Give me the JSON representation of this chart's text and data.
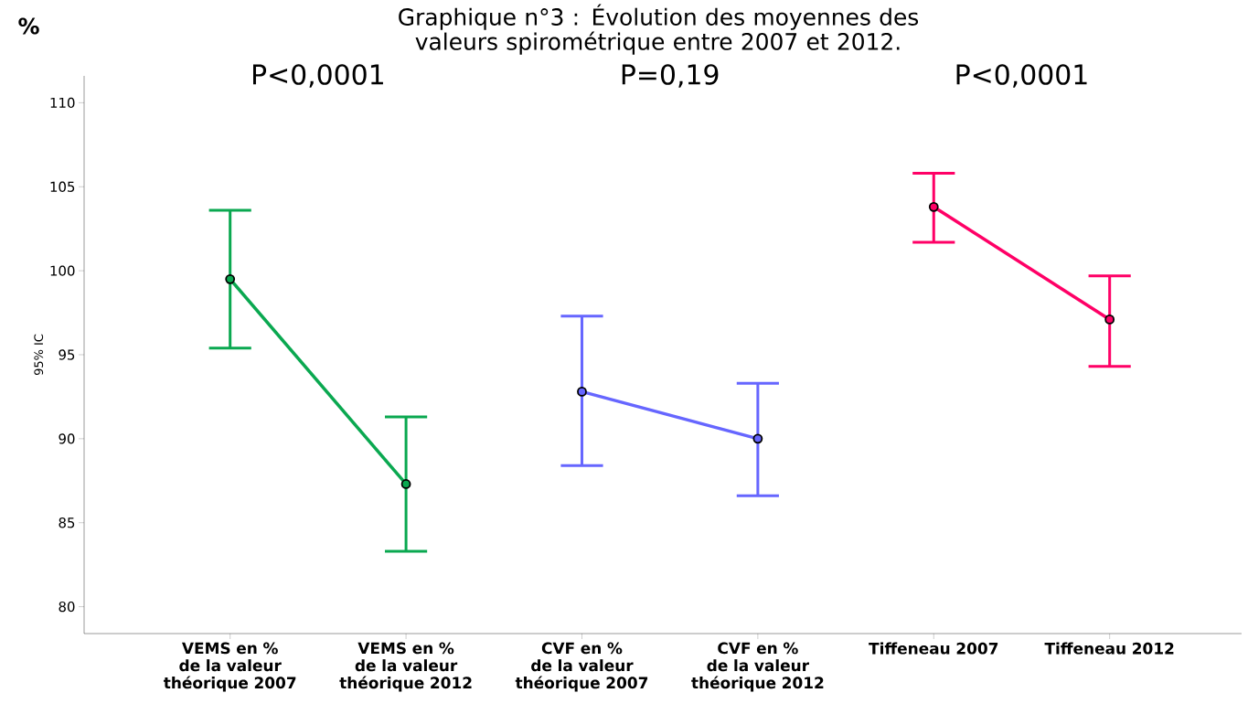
{
  "chart_data": {
    "type": "line",
    "title": "Graphique n°3 : Évolution des moyennes des valeurs spirométrique entre 2007 et 2012.",
    "ylabel": "95% IC",
    "categories": [
      "VEMS en % de la valeur théorique 2007",
      "VEMS en % de la valeur théorique 2012",
      "CVF en % de la valeur théorique 2007",
      "CVF en % de la valeur théorique 2012",
      "Tiffeneau 2007",
      "Tiffeneau 2012"
    ],
    "series": [
      {
        "color": "#0aa850",
        "values": [
          99.5,
          87.3,
          null,
          null,
          null,
          null
        ],
        "errors": [
          [
            95.4,
            103.6
          ],
          [
            83.3,
            91.3
          ],
          null,
          null,
          null,
          null
        ]
      },
      {
        "color": "#6666ff",
        "values": [
          null,
          null,
          92.8,
          90.0,
          null,
          null
        ],
        "errors": [
          null,
          null,
          [
            88.4,
            97.3
          ],
          [
            86.6,
            93.3
          ],
          null,
          null
        ]
      },
      {
        "color": "#ff0066",
        "values": [
          null,
          null,
          null,
          null,
          103.8,
          97.1
        ],
        "errors": [
          null,
          null,
          null,
          null,
          [
            101.7,
            105.8
          ],
          [
            94.3,
            99.7
          ]
        ]
      }
    ],
    "annotations": [
      "%",
      "P<0,0001",
      "P=0,19",
      "P<0,0001"
    ],
    "ylim": [
      78.4,
      111.6
    ],
    "yticks": [
      80,
      85,
      90,
      95,
      100,
      105,
      110
    ],
    "marker": "circle",
    "grid": false
  }
}
